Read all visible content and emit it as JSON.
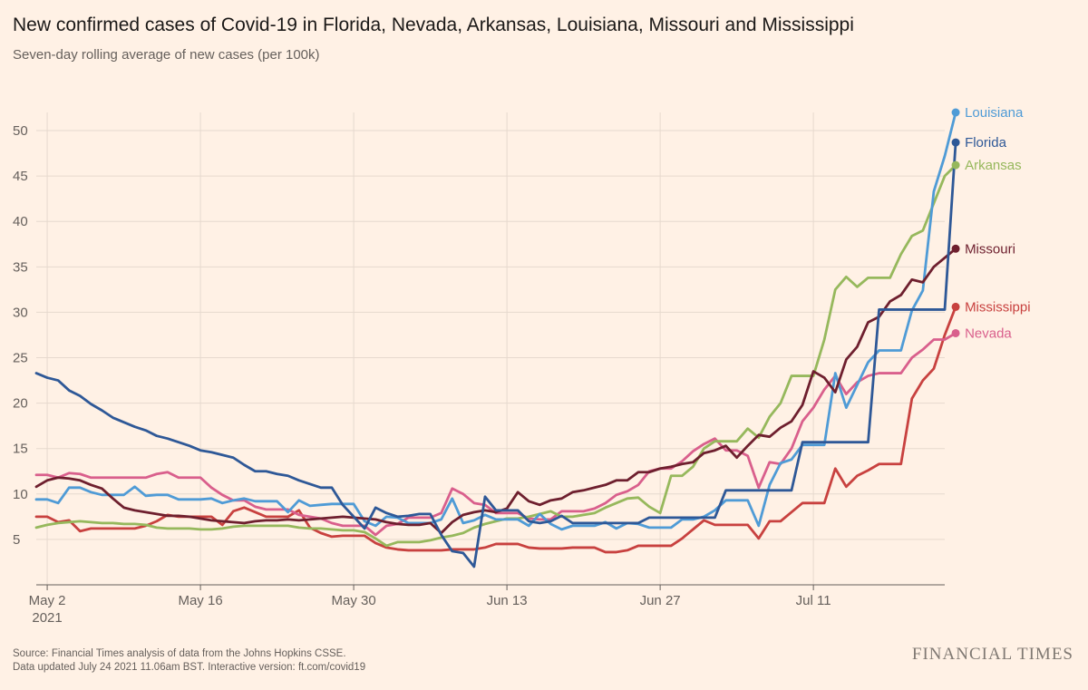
{
  "header": {
    "title": "New confirmed cases of Covid-19 in Florida, Nevada, Arkansas, Louisiana, Missouri and Mississippi",
    "subtitle": "Seven-day rolling average of new cases (per 100k)"
  },
  "footer": {
    "source_line": "Source: Financial Times analysis of data from the Johns Hopkins CSSE.",
    "updated_line": "Data updated July 24 2021 11.06am BST. Interactive version: ft.com/covid19",
    "logo_text": "FINANCIAL TIMES"
  },
  "chart_data": {
    "type": "line",
    "x_start": "2021-05-01",
    "x_ticks": [
      {
        "label": "May 2",
        "sub": "2021",
        "day": 1
      },
      {
        "label": "May 16",
        "sub": "",
        "day": 15
      },
      {
        "label": "May 30",
        "sub": "",
        "day": 29
      },
      {
        "label": "Jun 13",
        "sub": "",
        "day": 43
      },
      {
        "label": "Jun 27",
        "sub": "",
        "day": 57
      },
      {
        "label": "Jul 11",
        "sub": "",
        "day": 71
      }
    ],
    "x_range": [
      0,
      83
    ],
    "ylim": [
      0,
      52
    ],
    "y_ticks": [
      5,
      10,
      15,
      20,
      25,
      30,
      35,
      40,
      45,
      50
    ],
    "grid": true,
    "series": [
      {
        "name": "Mississippi",
        "color": "#c8413f",
        "values": [
          7.5,
          7.5,
          6.9,
          7.1,
          5.9,
          6.2,
          6.2,
          6.2,
          6.2,
          6.2,
          6.5,
          7,
          7.7,
          7.5,
          7.5,
          7.5,
          7.5,
          6.6,
          8.1,
          8.5,
          8,
          7.5,
          7.5,
          7.5,
          8.2,
          6.3,
          5.7,
          5.3,
          5.4,
          5.4,
          5.4,
          4.6,
          4.1,
          3.9,
          3.8,
          3.8,
          3.8,
          3.8,
          3.9,
          3.9,
          3.9,
          4.1,
          4.5,
          4.5,
          4.5,
          4.1,
          4,
          4,
          4,
          4.1,
          4.1,
          4.1,
          3.6,
          3.6,
          3.8,
          4.3,
          4.3,
          4.3,
          4.3,
          5.1,
          6.1,
          7.1,
          6.6,
          6.6,
          6.6,
          6.6,
          5.1,
          7,
          7,
          8,
          9,
          9,
          9,
          12.8,
          10.8,
          12,
          12.6,
          13.3,
          13.3,
          13.3,
          20.5,
          22.5,
          23.8,
          27.5,
          30.6
        ]
      },
      {
        "name": "Nevada",
        "color": "#d95f8c",
        "values": [
          12.1,
          12.1,
          11.8,
          12.3,
          12.2,
          11.8,
          11.8,
          11.8,
          11.8,
          11.8,
          11.8,
          12.2,
          12.4,
          11.8,
          11.8,
          11.8,
          10.7,
          9.9,
          9.3,
          9.3,
          8.6,
          8.3,
          8.3,
          8.3,
          7.7,
          7.5,
          7.3,
          6.8,
          6.5,
          6.5,
          6.5,
          5.5,
          6.5,
          6.7,
          7.4,
          7.4,
          7.4,
          7.9,
          10.6,
          10,
          9,
          8.8,
          7.9,
          7.9,
          7.9,
          7.3,
          7.2,
          7.2,
          8.1,
          8.1,
          8.1,
          8.4,
          9,
          9.9,
          10.3,
          11,
          12.5,
          12.8,
          12.8,
          13.6,
          14.7,
          15.5,
          16.1,
          14.8,
          14.8,
          14.2,
          10.7,
          13.5,
          13.3,
          15,
          18,
          19.5,
          21.5,
          23,
          21,
          22.3,
          23,
          23.3,
          23.3,
          23.3,
          25,
          25.9,
          27,
          27,
          27.7
        ]
      },
      {
        "name": "Arkansas",
        "color": "#96b85c",
        "values": [
          6.3,
          6.6,
          6.8,
          6.9,
          7,
          6.9,
          6.8,
          6.8,
          6.7,
          6.7,
          6.6,
          6.3,
          6.2,
          6.2,
          6.2,
          6.1,
          6.1,
          6.2,
          6.4,
          6.5,
          6.5,
          6.5,
          6.5,
          6.5,
          6.3,
          6.2,
          6.2,
          6.1,
          6,
          6,
          5.8,
          5.1,
          4.3,
          4.7,
          4.7,
          4.7,
          4.9,
          5.2,
          5.4,
          5.7,
          6.3,
          6.7,
          7,
          7.3,
          7.3,
          7.5,
          7.8,
          8.1,
          7.5,
          7.5,
          7.7,
          7.9,
          8.5,
          9,
          9.5,
          9.6,
          8.6,
          7.9,
          12,
          12,
          13,
          15,
          15.8,
          15.8,
          15.8,
          17.2,
          16.2,
          18.5,
          20,
          23,
          23,
          23,
          27,
          32.5,
          33.9,
          32.8,
          33.8,
          33.8,
          33.8,
          36.4,
          38.4,
          39,
          42,
          45,
          46.2
        ]
      },
      {
        "name": "Louisiana",
        "color": "#4f9bd6",
        "values": [
          9.4,
          9.4,
          9,
          10.7,
          10.7,
          10.2,
          9.9,
          9.9,
          9.9,
          10.8,
          9.8,
          9.9,
          9.9,
          9.4,
          9.4,
          9.4,
          9.5,
          9,
          9.3,
          9.5,
          9.2,
          9.2,
          9.2,
          8,
          9.3,
          8.7,
          8.8,
          8.9,
          8.9,
          8.9,
          7,
          6.5,
          7.5,
          7.4,
          6.8,
          6.8,
          6.8,
          7.2,
          9.5,
          6.8,
          7.1,
          7.7,
          7.2,
          7.2,
          7.2,
          6.5,
          7.8,
          6.7,
          6.1,
          6.5,
          6.5,
          6.5,
          6.9,
          6.2,
          6.8,
          6.7,
          6.3,
          6.3,
          6.3,
          7.2,
          7.2,
          7.5,
          8.2,
          9.3,
          9.3,
          9.3,
          6.5,
          11,
          13.4,
          13.8,
          15.4,
          15.4,
          15.4,
          23.3,
          19.5,
          22,
          24.5,
          25.8,
          25.8,
          25.8,
          30.2,
          32.4,
          43.3,
          47.2,
          52
        ]
      },
      {
        "name": "Missouri",
        "color": "#6e1f2e",
        "values": [
          10.8,
          11.5,
          11.8,
          11.7,
          11.5,
          11,
          10.6,
          9.5,
          8.5,
          8.2,
          8,
          7.8,
          7.6,
          7.6,
          7.5,
          7.3,
          7.1,
          7,
          6.9,
          6.8,
          7,
          7.1,
          7.1,
          7.2,
          7.1,
          7.2,
          7.3,
          7.4,
          7.5,
          7.4,
          7.3,
          7.2,
          6.9,
          6.7,
          6.6,
          6.6,
          6.8,
          5.7,
          6.9,
          7.7,
          8,
          8.2,
          8,
          8.4,
          10.2,
          9.2,
          8.8,
          9.3,
          9.5,
          10.2,
          10.4,
          10.7,
          11,
          11.5,
          11.5,
          12.4,
          12.4,
          12.8,
          13,
          13.3,
          13.5,
          14.5,
          14.8,
          15.3,
          14,
          15.3,
          16.5,
          16.3,
          17.3,
          18,
          19.8,
          23.5,
          22.8,
          21.2,
          24.8,
          26.2,
          28.9,
          29.5,
          31.2,
          31.9,
          33.6,
          33.3,
          35,
          36,
          37
        ]
      },
      {
        "name": "Florida",
        "color": "#2e5897",
        "values": [
          23.3,
          22.8,
          22.5,
          21.4,
          20.8,
          19.9,
          19.2,
          18.4,
          17.9,
          17.4,
          17,
          16.4,
          16.1,
          15.7,
          15.3,
          14.8,
          14.6,
          14.3,
          14,
          13.2,
          12.5,
          12.5,
          12.2,
          12,
          11.5,
          11.1,
          10.7,
          10.7,
          8.8,
          7.5,
          6.2,
          8.5,
          7.9,
          7.5,
          7.6,
          7.8,
          7.8,
          5.5,
          3.7,
          3.5,
          2,
          9.7,
          8.2,
          8.2,
          8.2,
          7,
          6.8,
          7,
          7.6,
          6.8,
          6.8,
          6.8,
          6.8,
          6.8,
          6.8,
          6.8,
          7.4,
          7.4,
          7.4,
          7.4,
          7.4,
          7.4,
          7.4,
          10.4,
          10.4,
          10.4,
          10.4,
          10.4,
          10.4,
          10.4,
          15.7,
          15.7,
          15.7,
          15.7,
          15.7,
          15.7,
          15.7,
          30.3,
          30.3,
          30.3,
          30.3,
          30.3,
          30.3,
          30.3,
          48.7
        ]
      }
    ]
  }
}
